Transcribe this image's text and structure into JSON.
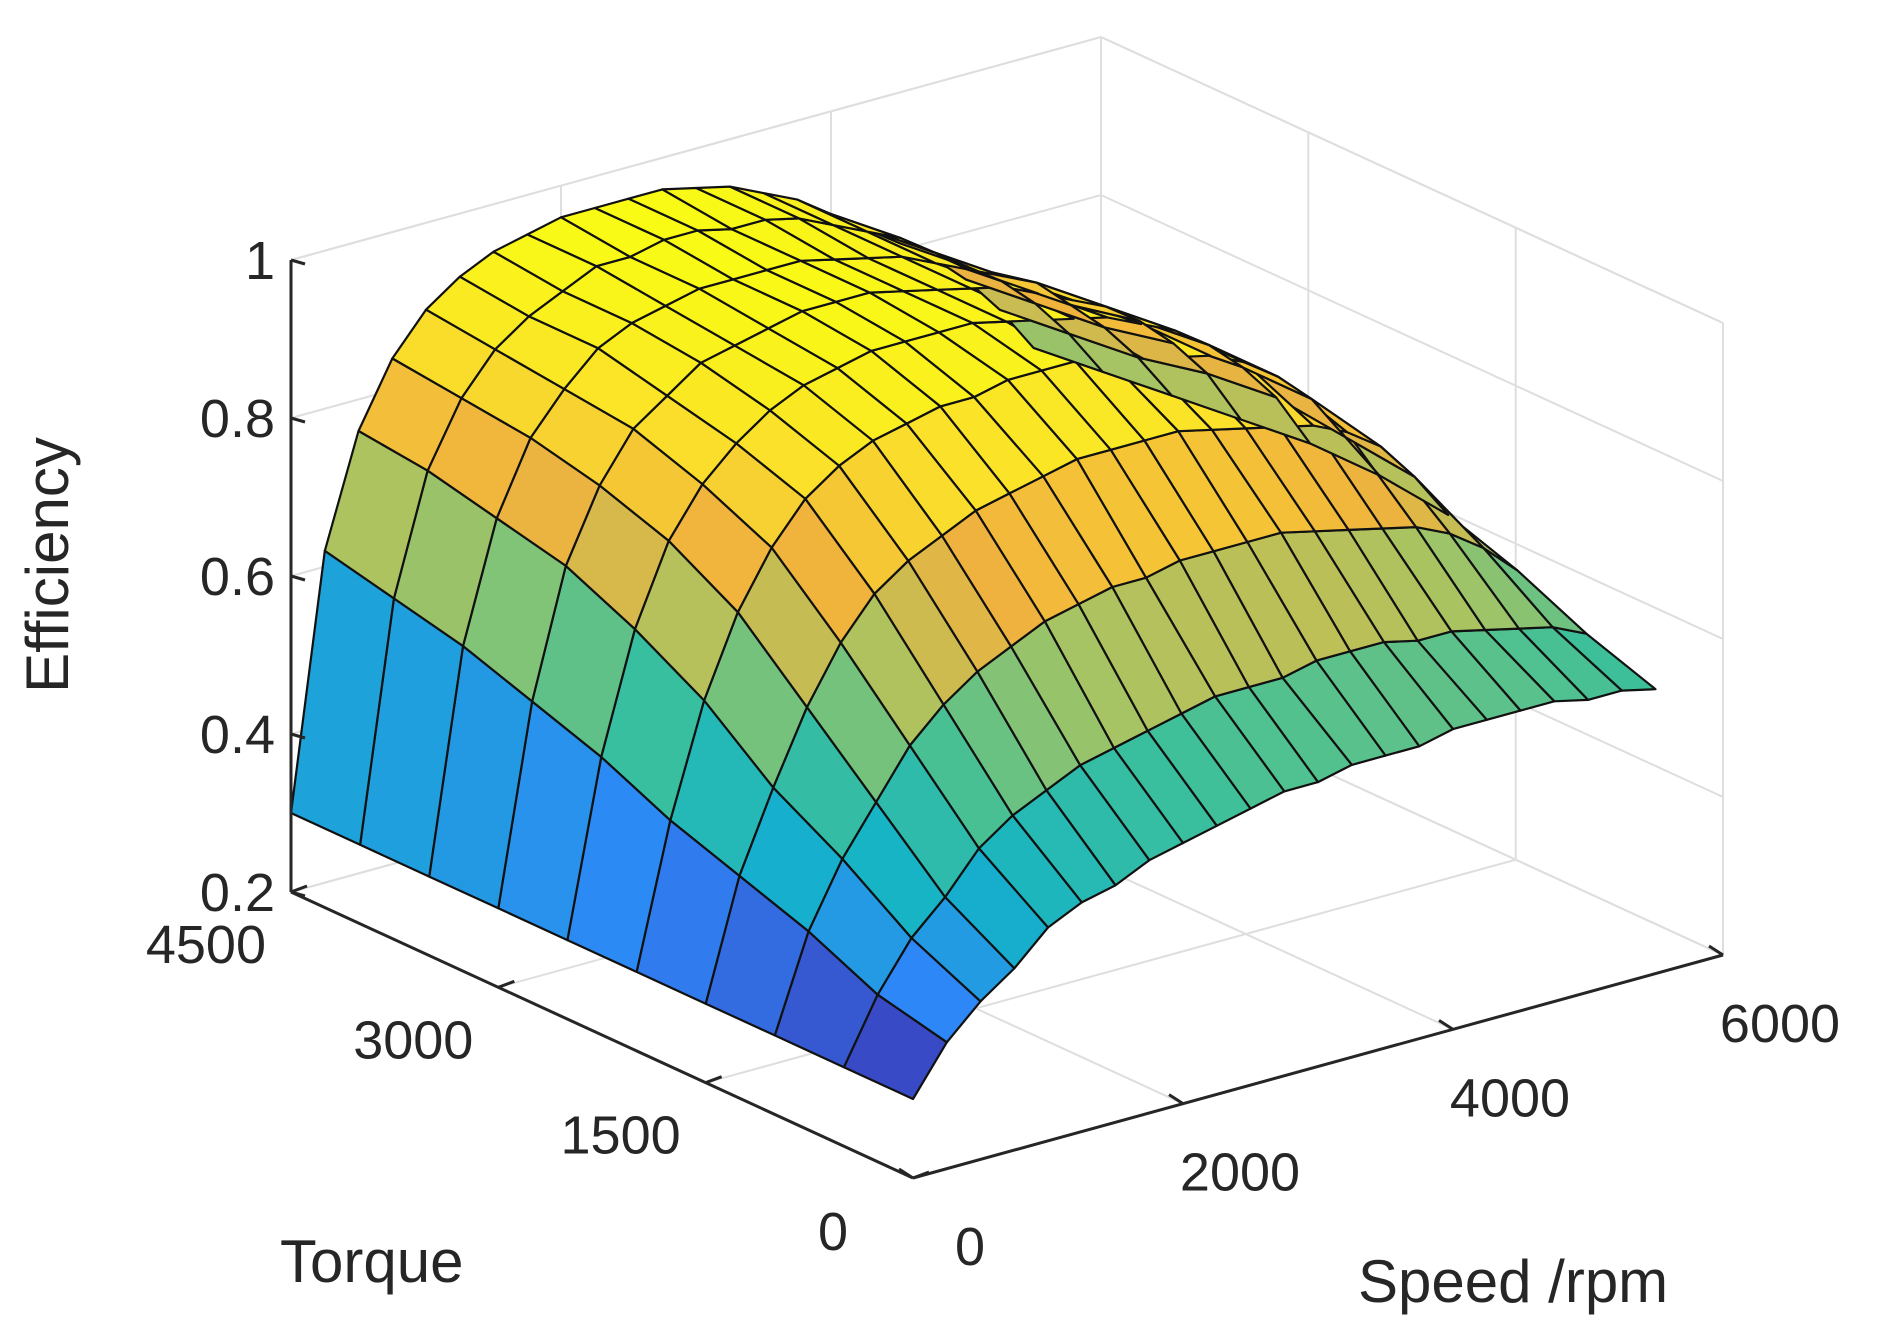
{
  "chart_data": {
    "type": "surface",
    "title": "",
    "xlabel": "Speed /rpm",
    "ylabel": "Torque",
    "zlabel": "Efficiency",
    "xlim": [
      0,
      6000
    ],
    "ylim": [
      0,
      4500
    ],
    "zlim": [
      0.2,
      1.0
    ],
    "x_ticks": [
      0,
      2000,
      4000,
      6000
    ],
    "x_tick_labels": [
      "0",
      "2000",
      "4000",
      "6000"
    ],
    "y_ticks": [
      0,
      1500,
      3000,
      4500
    ],
    "y_tick_labels": [
      "0",
      "1500",
      "3000",
      "4500"
    ],
    "z_ticks": [
      0.2,
      0.4,
      0.6,
      0.8,
      1.0
    ],
    "z_tick_labels": [
      "0.2",
      "0.4",
      "0.6",
      "0.8",
      "1"
    ],
    "colormap": [
      "#3e26a8",
      "#2e87f7",
      "#14b3c9",
      "#3dc09a",
      "#a8c462",
      "#f0b23e",
      "#fbe02a",
      "#f9fb15"
    ],
    "grid": true,
    "speed_rpm": [
      0,
      250,
      500,
      750,
      1000,
      1250,
      1500,
      1750,
      2000,
      2250,
      2500,
      2750,
      3000,
      3250,
      3500,
      3750,
      4000,
      4250,
      4500,
      4750,
      5000,
      5250,
      5500
    ],
    "torque": [
      0,
      500,
      1000,
      1500,
      2000,
      2500,
      3000,
      3500,
      4000,
      4500
    ],
    "efficiency": [
      [
        0.3,
        0.36,
        0.4,
        0.43,
        0.47,
        0.49,
        0.5,
        0.52,
        0.53,
        0.54,
        0.55,
        0.56,
        0.56,
        0.57,
        0.57,
        0.57,
        0.58,
        0.58,
        0.58,
        0.58,
        0.57,
        0.57,
        0.56
      ],
      [
        0.3,
        0.38,
        0.44,
        0.48,
        0.53,
        0.56,
        0.58,
        0.6,
        0.61,
        0.62,
        0.63,
        0.64,
        0.64,
        0.64,
        0.65,
        0.65,
        0.65,
        0.64,
        0.64,
        0.63,
        0.62,
        0.61,
        0.59
      ],
      [
        0.3,
        0.42,
        0.5,
        0.56,
        0.62,
        0.66,
        0.69,
        0.71,
        0.73,
        0.74,
        0.75,
        0.75,
        0.76,
        0.76,
        0.76,
        0.76,
        0.75,
        0.74,
        0.73,
        0.72,
        0.7,
        0.67,
        0.63
      ],
      [
        0.3,
        0.45,
        0.55,
        0.64,
        0.71,
        0.76,
        0.79,
        0.81,
        0.83,
        0.84,
        0.85,
        0.86,
        0.86,
        0.86,
        0.86,
        0.85,
        0.84,
        0.83,
        0.82,
        0.8,
        0.77,
        0.72,
        0.66
      ],
      [
        0.3,
        0.48,
        0.62,
        0.72,
        0.79,
        0.84,
        0.87,
        0.89,
        0.9,
        0.91,
        0.91,
        0.92,
        0.92,
        0.92,
        0.91,
        0.9,
        0.89,
        0.88,
        0.86,
        0.83,
        0.79,
        0.73,
        0.67
      ],
      [
        0.3,
        0.52,
        0.67,
        0.77,
        0.83,
        0.87,
        0.9,
        0.92,
        0.93,
        0.94,
        0.94,
        0.94,
        0.94,
        0.93,
        0.92,
        0.91,
        0.9,
        0.88,
        0.86,
        0.83,
        0.79,
        0.74,
        0.67
      ],
      [
        0.3,
        0.55,
        0.71,
        0.8,
        0.86,
        0.89,
        0.92,
        0.93,
        0.94,
        0.95,
        0.95,
        0.95,
        0.94,
        0.93,
        0.92,
        0.91,
        0.89,
        0.87,
        0.85,
        0.82,
        0.78,
        0.73,
        0.66
      ],
      [
        0.3,
        0.58,
        0.73,
        0.82,
        0.87,
        0.91,
        0.93,
        0.94,
        0.95,
        0.95,
        0.95,
        0.95,
        0.94,
        0.93,
        0.92,
        0.9,
        0.88,
        0.86,
        0.84,
        0.8,
        0.76,
        0.71,
        0.65
      ],
      [
        0.3,
        0.6,
        0.75,
        0.83,
        0.88,
        0.91,
        0.93,
        0.95,
        0.95,
        0.96,
        0.96,
        0.95,
        0.95,
        0.94,
        0.92,
        0.9,
        0.88,
        0.85,
        0.82,
        0.79,
        0.75,
        0.7,
        0.64
      ],
      [
        0.3,
        0.62,
        0.76,
        0.84,
        0.89,
        0.92,
        0.94,
        0.95,
        0.96,
        0.96,
        0.96,
        0.96,
        0.95,
        0.94,
        0.92,
        0.9,
        0.87,
        0.84,
        0.81,
        0.78,
        0.74,
        0.69,
        0.63
      ]
    ]
  }
}
